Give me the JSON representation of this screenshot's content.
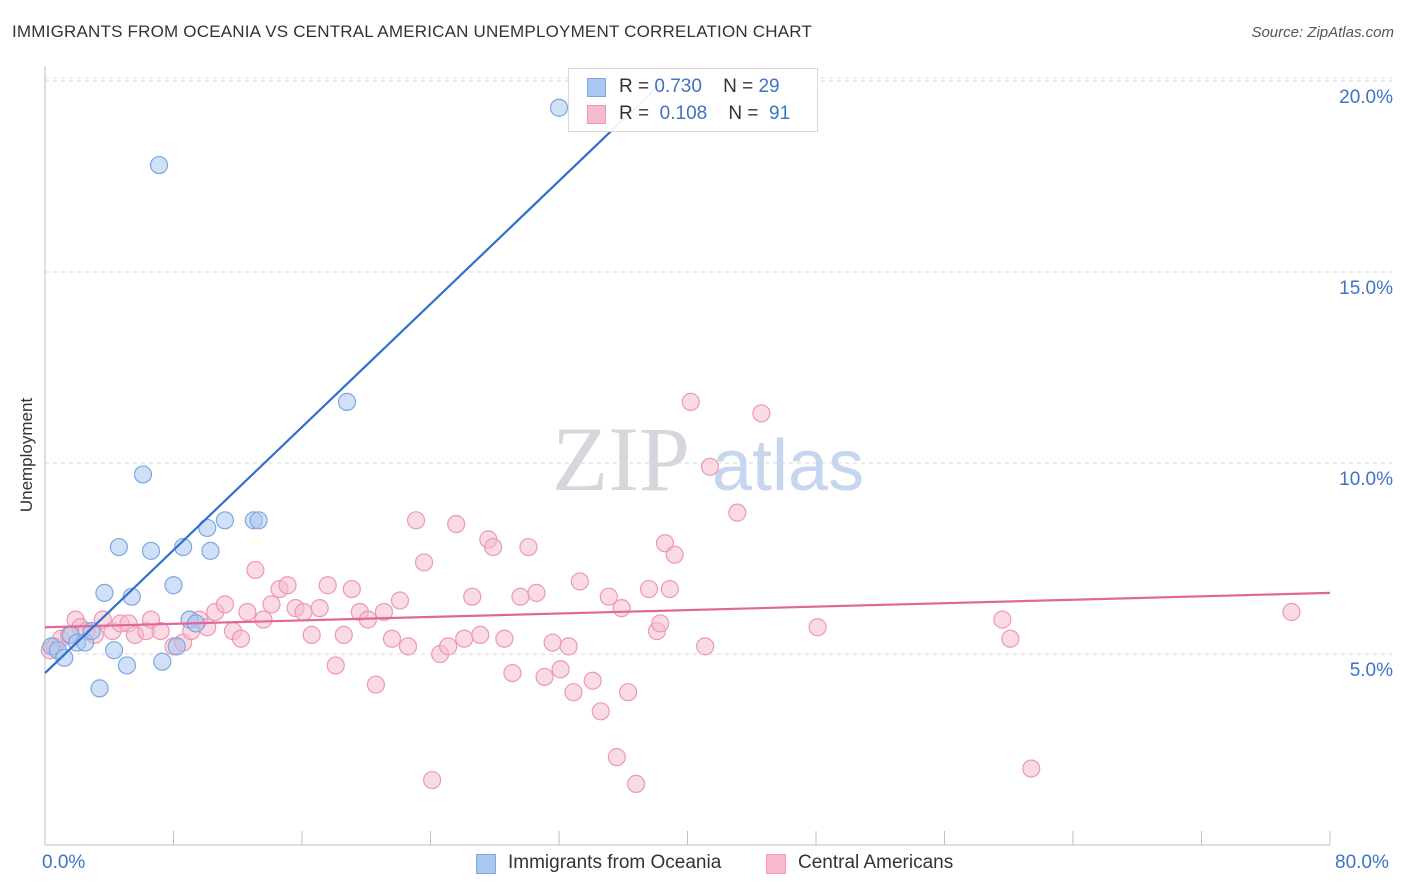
{
  "header": {
    "title": "IMMIGRANTS FROM OCEANIA VS CENTRAL AMERICAN UNEMPLOYMENT CORRELATION CHART",
    "source": "Source: ZipAtlas.com"
  },
  "watermark": {
    "part1": "ZIP",
    "part2": "atlas"
  },
  "colors": {
    "blue_fill": "#a9c7f0",
    "blue_stroke": "#7ea7e0",
    "blue_line": "#2f6fce",
    "pink_fill": "#f6bccd",
    "pink_stroke": "#ee98b4",
    "pink_line": "#e0679a",
    "accent_text": "#3f73c4"
  },
  "legend_top": [
    {
      "r_label": "R =",
      "r_value": "0.730",
      "n_label": "N =",
      "n_value": "29"
    },
    {
      "r_label": "R =",
      "r_value": "0.108",
      "n_label": "N =",
      "n_value": "91"
    }
  ],
  "legend_bottom": [
    "Immigrants from Oceania",
    "Central Americans"
  ],
  "chart_data": {
    "type": "scatter",
    "title": "IMMIGRANTS FROM OCEANIA VS CENTRAL AMERICAN UNEMPLOYMENT CORRELATION CHART",
    "xlabel": "",
    "ylabel": "Unemployment",
    "xlim": [
      0,
      80
    ],
    "ylim": [
      0,
      20.5
    ],
    "x_tick_labels": [
      "0.0%",
      "80.0%"
    ],
    "y_ticks": [
      5,
      10,
      15,
      20
    ],
    "y_tick_labels": [
      "5.0%",
      "10.0%",
      "15.0%",
      "20.0%"
    ],
    "grid": true,
    "legend_position": "top-center",
    "series": [
      {
        "name": "Immigrants from Oceania",
        "r": 0.73,
        "n": 29,
        "trend": {
          "x": [
            0,
            38.5
          ],
          "y": [
            4.5,
            20.0
          ]
        },
        "points": [
          [
            0.4,
            5.2
          ],
          [
            0.8,
            5.1
          ],
          [
            1.2,
            4.9
          ],
          [
            1.6,
            5.5
          ],
          [
            2.0,
            5.3
          ],
          [
            2.5,
            5.3
          ],
          [
            2.9,
            5.6
          ],
          [
            3.4,
            4.1
          ],
          [
            3.7,
            6.6
          ],
          [
            4.3,
            5.1
          ],
          [
            4.6,
            7.8
          ],
          [
            5.1,
            4.7
          ],
          [
            5.4,
            6.5
          ],
          [
            6.1,
            9.7
          ],
          [
            6.6,
            7.7
          ],
          [
            7.1,
            17.8
          ],
          [
            7.3,
            4.8
          ],
          [
            8.0,
            6.8
          ],
          [
            8.2,
            5.2
          ],
          [
            8.6,
            7.8
          ],
          [
            9.0,
            5.9
          ],
          [
            9.4,
            5.8
          ],
          [
            10.1,
            8.3
          ],
          [
            10.3,
            7.7
          ],
          [
            11.2,
            8.5
          ],
          [
            13.0,
            8.5
          ],
          [
            13.3,
            8.5
          ],
          [
            18.8,
            11.6
          ],
          [
            32.0,
            19.3
          ]
        ]
      },
      {
        "name": "Central Americans",
        "r": 0.108,
        "n": 91,
        "trend": {
          "x": [
            0,
            80
          ],
          "y": [
            5.7,
            6.6
          ]
        },
        "points": [
          [
            0.3,
            5.1
          ],
          [
            0.6,
            5.2
          ],
          [
            1.0,
            5.4
          ],
          [
            1.5,
            5.5
          ],
          [
            1.9,
            5.9
          ],
          [
            2.2,
            5.7
          ],
          [
            2.6,
            5.6
          ],
          [
            3.1,
            5.5
          ],
          [
            3.6,
            5.9
          ],
          [
            4.2,
            5.6
          ],
          [
            4.7,
            5.8
          ],
          [
            5.2,
            5.8
          ],
          [
            5.6,
            5.5
          ],
          [
            6.3,
            5.6
          ],
          [
            6.6,
            5.9
          ],
          [
            7.2,
            5.6
          ],
          [
            8.0,
            5.2
          ],
          [
            8.6,
            5.3
          ],
          [
            9.1,
            5.6
          ],
          [
            9.6,
            5.9
          ],
          [
            10.1,
            5.7
          ],
          [
            10.6,
            6.1
          ],
          [
            11.2,
            6.3
          ],
          [
            11.7,
            5.6
          ],
          [
            12.2,
            5.4
          ],
          [
            12.6,
            6.1
          ],
          [
            13.1,
            7.2
          ],
          [
            13.6,
            5.9
          ],
          [
            14.1,
            6.3
          ],
          [
            14.6,
            6.7
          ],
          [
            15.1,
            6.8
          ],
          [
            15.6,
            6.2
          ],
          [
            16.1,
            6.1
          ],
          [
            16.6,
            5.5
          ],
          [
            17.1,
            6.2
          ],
          [
            17.6,
            6.8
          ],
          [
            18.1,
            4.7
          ],
          [
            18.6,
            5.5
          ],
          [
            19.1,
            6.7
          ],
          [
            19.6,
            6.1
          ],
          [
            20.1,
            5.9
          ],
          [
            20.6,
            4.2
          ],
          [
            21.1,
            6.1
          ],
          [
            21.6,
            5.4
          ],
          [
            22.1,
            6.4
          ],
          [
            22.6,
            5.2
          ],
          [
            23.1,
            8.5
          ],
          [
            23.6,
            7.4
          ],
          [
            24.1,
            1.7
          ],
          [
            24.6,
            5.0
          ],
          [
            25.1,
            5.2
          ],
          [
            25.6,
            8.4
          ],
          [
            26.1,
            5.4
          ],
          [
            26.6,
            6.5
          ],
          [
            27.1,
            5.5
          ],
          [
            27.6,
            8.0
          ],
          [
            27.9,
            7.8
          ],
          [
            28.6,
            5.4
          ],
          [
            29.1,
            4.5
          ],
          [
            29.6,
            6.5
          ],
          [
            30.1,
            7.8
          ],
          [
            30.6,
            6.6
          ],
          [
            31.1,
            4.4
          ],
          [
            31.6,
            5.3
          ],
          [
            32.1,
            4.6
          ],
          [
            32.6,
            5.2
          ],
          [
            32.9,
            4.0
          ],
          [
            33.3,
            6.9
          ],
          [
            34.1,
            4.3
          ],
          [
            34.6,
            3.5
          ],
          [
            35.1,
            6.5
          ],
          [
            35.6,
            2.3
          ],
          [
            35.9,
            6.2
          ],
          [
            36.3,
            4.0
          ],
          [
            36.8,
            1.6
          ],
          [
            37.6,
            6.7
          ],
          [
            38.1,
            5.6
          ],
          [
            38.6,
            7.9
          ],
          [
            38.9,
            6.7
          ],
          [
            39.2,
            7.6
          ],
          [
            40.2,
            11.6
          ],
          [
            41.1,
            5.2
          ],
          [
            41.4,
            9.9
          ],
          [
            43.1,
            8.7
          ],
          [
            44.6,
            11.3
          ],
          [
            48.1,
            5.7
          ],
          [
            59.6,
            5.9
          ],
          [
            60.1,
            5.4
          ],
          [
            61.4,
            2.0
          ],
          [
            77.6,
            6.1
          ],
          [
            38.3,
            5.8
          ]
        ]
      }
    ]
  }
}
